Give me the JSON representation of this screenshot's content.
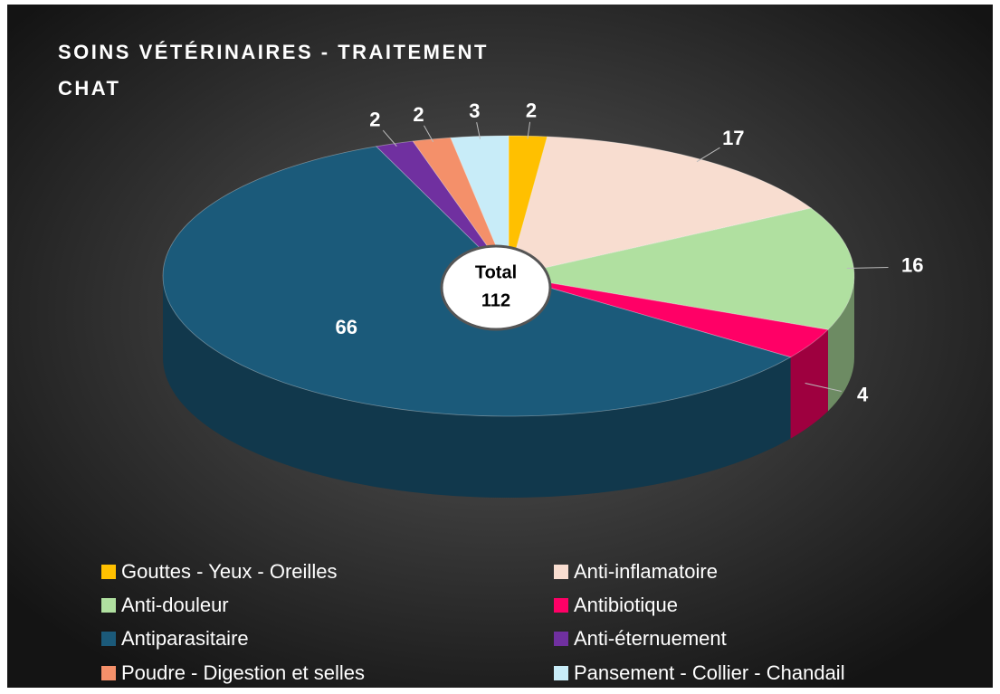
{
  "chart_data": {
    "type": "pie",
    "title": "SOINS VÉTÉRINAIRES - TRAITEMENT CHAT",
    "categories": [
      "Gouttes - Yeux - Oreilles",
      "Anti-inflamatoire",
      "Anti-douleur",
      "Antibiotique",
      "Antiparasitaire",
      "Anti-éternuement",
      "Poudre - Digestion et selles",
      "Pansement - Collier - Chandail"
    ],
    "values": [
      2,
      17,
      16,
      4,
      66,
      2,
      2,
      3
    ],
    "colors": [
      "#ffc000",
      "#f8ddd0",
      "#b0e0a0",
      "#ff0066",
      "#1b5a7a",
      "#7030a0",
      "#f4906a",
      "#c8ecf8"
    ],
    "annotation": {
      "label": "Total",
      "value": 112
    },
    "legend": "bottom"
  }
}
